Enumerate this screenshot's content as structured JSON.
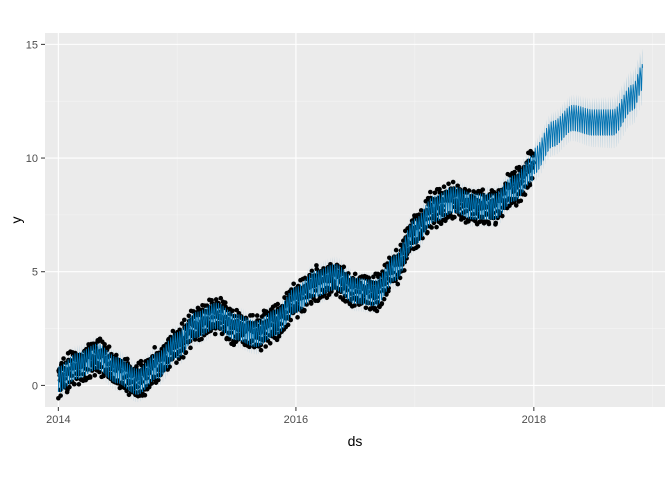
{
  "chart_data": {
    "type": "line",
    "title": "",
    "xlabel": "ds",
    "ylabel": "y",
    "x_type": "date",
    "xlim": [
      "2013-11-21",
      "2019-02-08"
    ],
    "ylim": [
      -0.95,
      15.5
    ],
    "x_ticks": [
      {
        "value": "2014-01-01",
        "label": "2014"
      },
      {
        "value": "2016-01-01",
        "label": "2016"
      },
      {
        "value": "2018-01-01",
        "label": "2018"
      }
    ],
    "y_ticks": [
      {
        "value": 0,
        "label": "0"
      },
      {
        "value": 5,
        "label": "5"
      },
      {
        "value": 10,
        "label": "10"
      },
      {
        "value": 15,
        "label": "15"
      }
    ],
    "grid": true,
    "legend": "none",
    "colors": {
      "panel": "#ebebeb",
      "grid_major": "#ffffff",
      "grid_minor": "#f5f5f5",
      "observed": "#000000",
      "forecast": "#0072b2",
      "band": "#0072b2"
    },
    "series": [
      {
        "kind": "observed points",
        "start": "2014-01-01",
        "end": "2017-12-31",
        "values": [
          {
            "x": "2014-01-01",
            "y": 0.3
          },
          {
            "x": "2014-03-01",
            "y": 0.9
          },
          {
            "x": "2014-05-01",
            "y": 1.3
          },
          {
            "x": "2014-07-01",
            "y": 0.7
          },
          {
            "x": "2014-09-01",
            "y": 0.2
          },
          {
            "x": "2014-11-01",
            "y": 0.9
          },
          {
            "x": "2015-01-01",
            "y": 1.8
          },
          {
            "x": "2015-03-01",
            "y": 2.7
          },
          {
            "x": "2015-05-01",
            "y": 3.1
          },
          {
            "x": "2015-07-01",
            "y": 2.6
          },
          {
            "x": "2015-09-01",
            "y": 2.3
          },
          {
            "x": "2015-11-01",
            "y": 2.8
          },
          {
            "x": "2016-01-01",
            "y": 3.8
          },
          {
            "x": "2016-03-01",
            "y": 4.5
          },
          {
            "x": "2016-05-01",
            "y": 4.8
          },
          {
            "x": "2016-07-01",
            "y": 4.2
          },
          {
            "x": "2016-09-01",
            "y": 4.1
          },
          {
            "x": "2016-11-01",
            "y": 5.2
          },
          {
            "x": "2017-01-01",
            "y": 6.8
          },
          {
            "x": "2017-03-01",
            "y": 7.8
          },
          {
            "x": "2017-05-01",
            "y": 8.2
          },
          {
            "x": "2017-07-01",
            "y": 7.9
          },
          {
            "x": "2017-09-01",
            "y": 7.9
          },
          {
            "x": "2017-11-01",
            "y": 8.7
          },
          {
            "x": "2017-12-31",
            "y": 9.6
          }
        ]
      },
      {
        "kind": "forecast line",
        "start": "2014-01-01",
        "end": "2018-12-01",
        "values": [
          {
            "x": "2018-01-01",
            "y": 9.9
          },
          {
            "x": "2018-03-01",
            "y": 11.1
          },
          {
            "x": "2018-05-01",
            "y": 11.8
          },
          {
            "x": "2018-07-01",
            "y": 11.6
          },
          {
            "x": "2018-09-01",
            "y": 11.6
          },
          {
            "x": "2018-11-01",
            "y": 12.7
          },
          {
            "x": "2018-12-01",
            "y": 13.6
          }
        ]
      }
    ]
  }
}
